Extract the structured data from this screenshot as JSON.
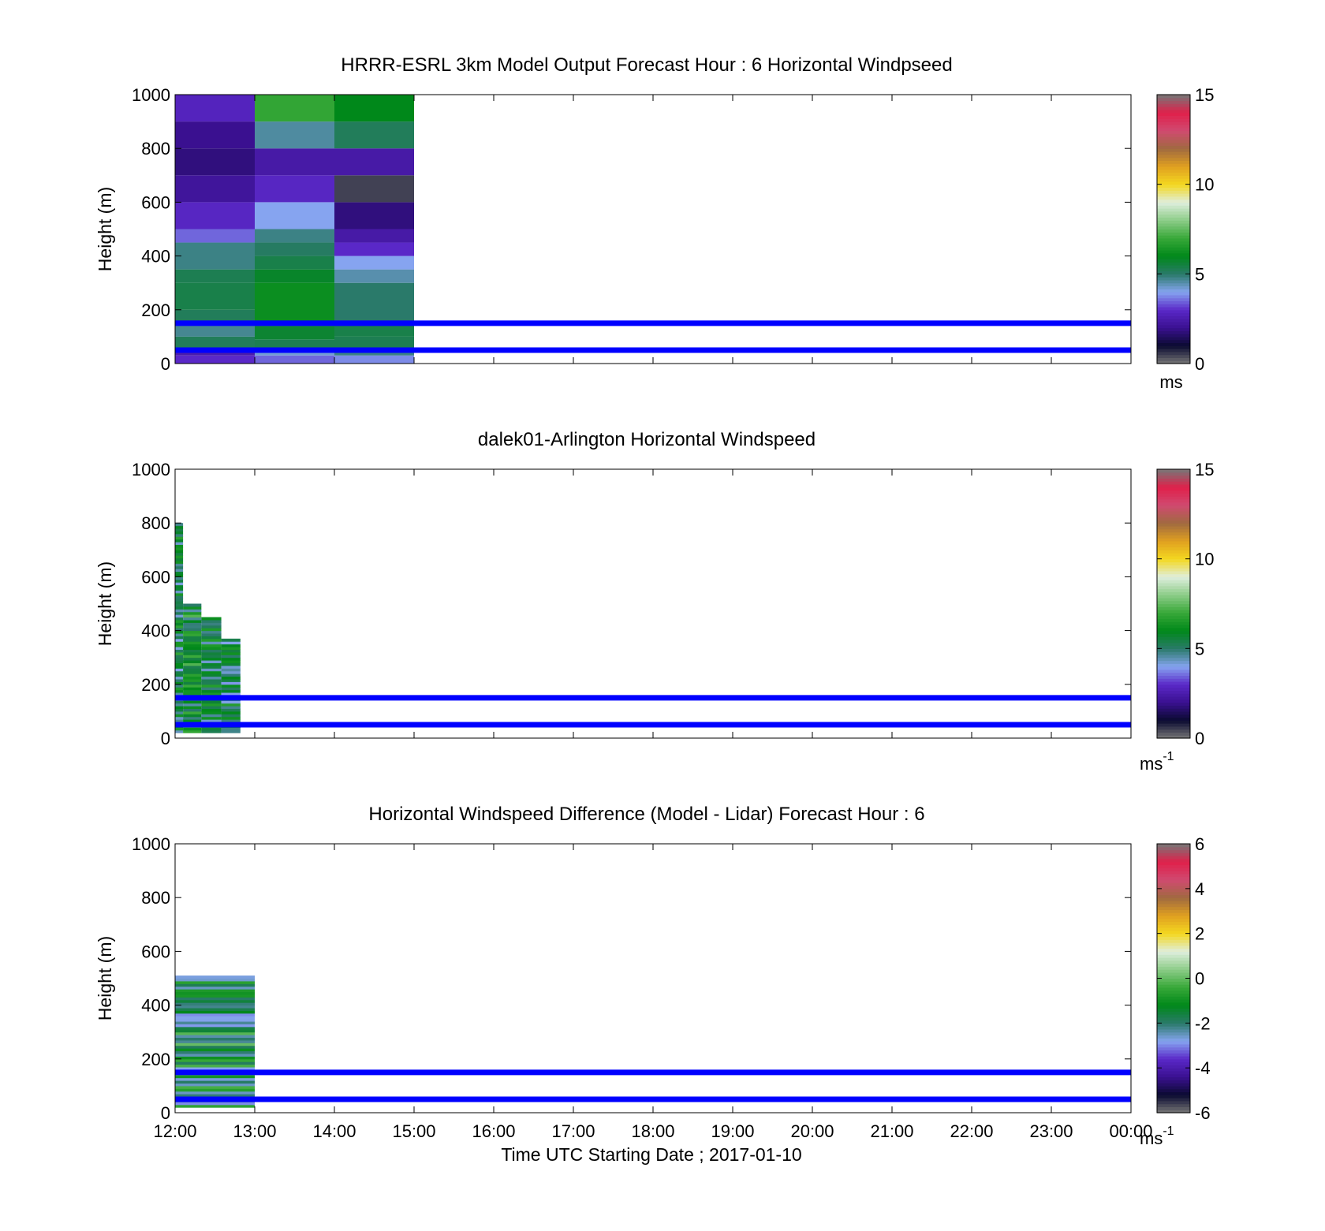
{
  "colors": {
    "reference_line": "#0000ff",
    "colorbar_stops": [
      "#777777",
      "#0a0a30",
      "#3a1090",
      "#5a28c8",
      "#86a4f0",
      "#2a7a6a",
      "#00881a",
      "#38a838",
      "#8ccc88",
      "#dfeedd",
      "#f4d820",
      "#e0a020",
      "#a06a40",
      "#d04a70",
      "#e0204a",
      "#777777"
    ]
  },
  "chart_data": [
    {
      "type": "heatmap",
      "title": "HRRR-ESRL 3km Model Output   Forecast Hour : 6 Horizontal Windpseed",
      "xlabel": "",
      "ylabel": "Height (m)",
      "ylim": [
        0,
        1000
      ],
      "yticks": [
        "0",
        "200",
        "400",
        "600",
        "800",
        "1000"
      ],
      "x_ticks": [
        "12:00",
        "13:00",
        "14:00",
        "15:00",
        "16:00",
        "17:00",
        "18:00",
        "19:00",
        "20:00",
        "21:00",
        "22:00",
        "23:00",
        "00:00"
      ],
      "x_tick_labels_shown": false,
      "colorbar": {
        "min": 0,
        "max": 15,
        "ticks": [
          "0",
          "5",
          "10",
          "15"
        ],
        "unit": "ms"
      },
      "reference_lines_m": [
        50,
        150
      ],
      "columns": [
        {
          "t0": 0,
          "t1": 1,
          "cells": [
            [
              0,
              30,
              3
            ],
            [
              30,
              45,
              2.5
            ],
            [
              45,
              60,
              4
            ],
            [
              60,
              100,
              5.2
            ],
            [
              100,
              140,
              4.7
            ],
            [
              140,
              200,
              5.2
            ],
            [
              200,
              300,
              5.4
            ],
            [
              300,
              350,
              5.3
            ],
            [
              350,
              450,
              4.8
            ],
            [
              450,
              500,
              3.5
            ],
            [
              500,
              600,
              2.9
            ],
            [
              600,
              700,
              2.2
            ],
            [
              700,
              800,
              1.8
            ],
            [
              800,
              900,
              2.0
            ],
            [
              900,
              1000,
              2.8
            ]
          ]
        },
        {
          "t0": 1,
          "t1": 2,
          "cells": [
            [
              0,
              30,
              3.5
            ],
            [
              30,
              60,
              4.2
            ],
            [
              60,
              90,
              5.3
            ],
            [
              90,
              140,
              5.7
            ],
            [
              140,
              300,
              6.2
            ],
            [
              300,
              350,
              5.8
            ],
            [
              350,
              400,
              5.4
            ],
            [
              400,
              450,
              5.1
            ],
            [
              450,
              500,
              4.8
            ],
            [
              500,
              600,
              4.0
            ],
            [
              600,
              700,
              2.9
            ],
            [
              700,
              800,
              2.4
            ],
            [
              800,
              900,
              4.6
            ],
            [
              900,
              1000,
              6.9
            ]
          ]
        },
        {
          "t0": 2,
          "t1": 3,
          "cells": [
            [
              0,
              30,
              3.8
            ],
            [
              30,
              60,
              4.8
            ],
            [
              60,
              100,
              5.3
            ],
            [
              100,
              150,
              5.4
            ],
            [
              150,
              300,
              5.0
            ],
            [
              300,
              350,
              4.5
            ],
            [
              350,
              400,
              4.0
            ],
            [
              400,
              450,
              3.0
            ],
            [
              450,
              500,
              2.4
            ],
            [
              500,
              600,
              1.8
            ],
            [
              600,
              700,
              0.5
            ],
            [
              700,
              800,
              2.4
            ],
            [
              800,
              900,
              5.2
            ],
            [
              900,
              1000,
              6.0
            ]
          ]
        }
      ]
    },
    {
      "type": "heatmap",
      "title": "dalek01-Arlington  Horizontal Windspeed",
      "xlabel": "",
      "ylabel": "Height (m)",
      "ylim": [
        0,
        1000
      ],
      "yticks": [
        "0",
        "200",
        "400",
        "600",
        "800",
        "1000"
      ],
      "x_ticks": [
        "12:00",
        "13:00",
        "14:00",
        "15:00",
        "16:00",
        "17:00",
        "18:00",
        "19:00",
        "20:00",
        "21:00",
        "22:00",
        "23:00",
        "00:00"
      ],
      "x_tick_labels_shown": false,
      "colorbar": {
        "min": 0,
        "max": 15,
        "ticks": [
          "0",
          "5",
          "10",
          "15"
        ],
        "unit": "ms",
        "unit_sup": "-1"
      },
      "reference_lines_m": [
        50,
        150
      ],
      "columns": [
        {
          "t0": 0.0,
          "t1": 0.1,
          "top": 800,
          "base": 5.5
        },
        {
          "t0": 0.1,
          "t1": 0.33,
          "top": 500,
          "base": 6.0
        },
        {
          "t0": 0.33,
          "t1": 0.58,
          "top": 450,
          "base": 5.6
        },
        {
          "t0": 0.58,
          "t1": 0.82,
          "top": 370,
          "base": 5.2
        }
      ]
    },
    {
      "type": "heatmap",
      "title": "Horizontal Windspeed Difference (Model - Lidar) Forecast Hour : 6",
      "xlabel": "Time UTC  Starting Date ; 2017-01-10",
      "ylabel": "Height (m)",
      "ylim": [
        0,
        1000
      ],
      "yticks": [
        "0",
        "200",
        "400",
        "600",
        "800",
        "1000"
      ],
      "x_ticks": [
        "12:00",
        "13:00",
        "14:00",
        "15:00",
        "16:00",
        "17:00",
        "18:00",
        "19:00",
        "20:00",
        "21:00",
        "22:00",
        "23:00",
        "00:00"
      ],
      "x_tick_labels_shown": true,
      "colorbar": {
        "min": -6,
        "max": 6,
        "ticks": [
          "-6",
          "-4",
          "-2",
          "0",
          "2",
          "4",
          "6"
        ],
        "unit": "ms",
        "unit_sup": "-1"
      },
      "reference_lines_m": [
        50,
        150
      ],
      "columns": [
        {
          "t0": 0,
          "t1": 1,
          "top": 510,
          "base": -1.5
        }
      ]
    }
  ]
}
